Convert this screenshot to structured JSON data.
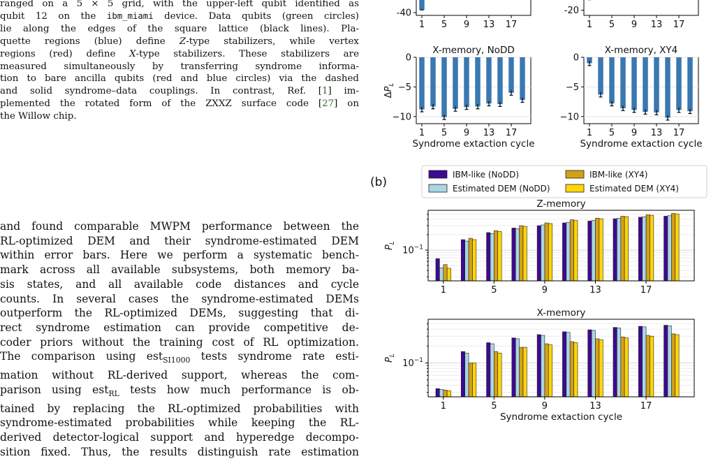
{
  "caption": {
    "lines": [
      "ranged on a 5 × 5 grid, with the upper-left qubit identified as",
      "qubit 12 on the ibm_miami device. Data qubits (green circles)",
      "lie along the edges of the square lattice (black lines). Pla-",
      "quette regions (blue) define Z-type stabilizers, while vertex",
      "regions (red) define X-type stabilizers. These stabilizers are",
      "measured simultaneously by transferring syndrome informa-",
      "tion to bare ancilla qubits (red and blue circles) via the dashed",
      "and solid syndrome–data couplings. In contrast, Ref. [1] im-",
      "plemented the rotated form of the ZXXZ surface code [27] on",
      "the Willow chip."
    ]
  },
  "body": {
    "lines": [
      "and found comparable MWPM performance between the",
      "RL-optimized DEM and their syndrome-estimated DEM",
      "within error bars. Here we perform a systematic bench-",
      "mark across all available subsystems, both memory ba-",
      "sis states, and all available code distances and cycle",
      "counts. In several cases the syndrome-estimated DEMs",
      "outperform the RL-optimized DEMs, suggesting that di-",
      "rect syndrome estimation can provide competitive de-",
      "coder priors without the training cost of RL optimization.",
      "The comparison using est_SI1000 tests syndrome rate esti-",
      "mation without RL-derived support, whereas the com-",
      "parison using est_RL tests how much performance is ob-",
      "tained by replacing the RL-optimized probabilities with",
      "syndrome-estimated probabilities while keeping the RL-",
      "derived detector-logical support and hyperedge decompo-",
      "sition fixed. Thus, the results distinguish rate estimation"
    ]
  },
  "panel_label_b": "(b)",
  "colors": {
    "dp_bar": "#3a78b0",
    "ibm_nodd": "#3d0a91",
    "est_nodd": "#a9d6e5",
    "ibm_xy4": "#d4a017",
    "est_xy4": "#ffd60a"
  },
  "chart_data": [
    {
      "type": "bar",
      "panel": "top-left (cropped)",
      "x_ticks": [
        "1",
        "5",
        "9",
        "13",
        "17"
      ],
      "y_ticks": [
        "-40"
      ],
      "ylim": [
        -42,
        0
      ],
      "values_partial": [
        {
          "x": 1,
          "y": -38
        }
      ]
    },
    {
      "type": "bar",
      "panel": "top-right (cropped)",
      "x_ticks": [
        "1",
        "5",
        "9",
        "13",
        "17"
      ],
      "y_ticks": [
        "-20"
      ],
      "ylim": [
        -22,
        0
      ],
      "values_partial": [
        {
          "x": 1,
          "y": -16
        },
        {
          "x": 3,
          "y": -14
        }
      ]
    },
    {
      "type": "bar",
      "title": "X-memory, NoDD",
      "ylabel": "ΔP_L",
      "xlabel": "Syndrome extaction cycle",
      "x": [
        1,
        3,
        5,
        7,
        9,
        11,
        13,
        15,
        17,
        19
      ],
      "values": [
        -8.8,
        -8.3,
        -10.1,
        -8.7,
        -8.4,
        -8.3,
        -7.8,
        -7.9,
        -6.0,
        -7.2
      ],
      "errors": [
        0.4,
        0.4,
        0.4,
        0.4,
        0.4,
        0.4,
        0.4,
        0.4,
        0.4,
        0.4
      ],
      "x_ticks": [
        "1",
        "5",
        "9",
        "13",
        "17"
      ],
      "y_ticks": [
        "0",
        "−5",
        "−10"
      ],
      "ylim": [
        -11.2,
        0
      ]
    },
    {
      "type": "bar",
      "title": "X-memory, XY4",
      "xlabel": "Syndrome extaction cycle",
      "x": [
        1,
        3,
        5,
        7,
        9,
        11,
        13,
        15,
        17,
        19
      ],
      "values": [
        -1.0,
        -6.3,
        -7.8,
        -8.6,
        -8.9,
        -9.2,
        -9.3,
        -10.2,
        -8.9,
        -9.1
      ],
      "errors": [
        0.4,
        0.4,
        0.4,
        0.4,
        0.4,
        0.4,
        0.4,
        0.4,
        0.4,
        0.4
      ],
      "x_ticks": [
        "1",
        "5",
        "9",
        "13",
        "17"
      ],
      "y_ticks": [
        "0",
        "−5",
        "−10"
      ],
      "ylim": [
        -11.2,
        0
      ]
    },
    {
      "type": "bar",
      "title": "Z-memory",
      "ylabel": "P_L",
      "yscale": "log",
      "y_tick_label": "10⁻¹",
      "ylim": [
        0.025,
        0.6
      ],
      "x": [
        1,
        3,
        5,
        7,
        9,
        11,
        13,
        15,
        17,
        19
      ],
      "x_ticks": [
        "1",
        "5",
        "9",
        "13",
        "17"
      ],
      "series": [
        {
          "name": "IBM-like (NoDD)",
          "values": [
            0.068,
            0.16,
            0.22,
            0.27,
            0.3,
            0.34,
            0.37,
            0.41,
            0.44,
            0.46
          ]
        },
        {
          "name": "Estimated DEM (NoDD)",
          "values": [
            0.045,
            0.15,
            0.21,
            0.26,
            0.31,
            0.35,
            0.38,
            0.42,
            0.45,
            0.47
          ]
        },
        {
          "name": "IBM-like (XY4)",
          "values": [
            0.052,
            0.17,
            0.24,
            0.3,
            0.34,
            0.39,
            0.42,
            0.46,
            0.49,
            0.52
          ]
        },
        {
          "name": "Estimated DEM (XY4)",
          "values": [
            0.044,
            0.16,
            0.23,
            0.29,
            0.33,
            0.38,
            0.41,
            0.45,
            0.48,
            0.51
          ]
        }
      ]
    },
    {
      "type": "bar",
      "title": "X-memory",
      "ylabel": "P_L",
      "xlabel": "Syndrome extaction cycle",
      "yscale": "log",
      "y_tick_label": "10⁻¹",
      "ylim": [
        0.025,
        0.6
      ],
      "x": [
        1,
        3,
        5,
        7,
        9,
        11,
        13,
        15,
        17,
        19
      ],
      "x_ticks": [
        "1",
        "5",
        "9",
        "13",
        "17"
      ],
      "series": [
        {
          "name": "IBM-like (NoDD)",
          "values": [
            0.035,
            0.16,
            0.23,
            0.28,
            0.32,
            0.36,
            0.39,
            0.43,
            0.45,
            0.47
          ]
        },
        {
          "name": "Estimated DEM (NoDD)",
          "values": [
            0.034,
            0.15,
            0.22,
            0.27,
            0.31,
            0.35,
            0.38,
            0.42,
            0.44,
            0.46
          ]
        },
        {
          "name": "IBM-like (XY4)",
          "values": [
            0.033,
            0.1,
            0.16,
            0.19,
            0.22,
            0.24,
            0.27,
            0.29,
            0.31,
            0.33
          ]
        },
        {
          "name": "Estimated DEM (XY4)",
          "values": [
            0.032,
            0.1,
            0.15,
            0.19,
            0.21,
            0.23,
            0.26,
            0.28,
            0.3,
            0.32
          ]
        }
      ]
    }
  ]
}
